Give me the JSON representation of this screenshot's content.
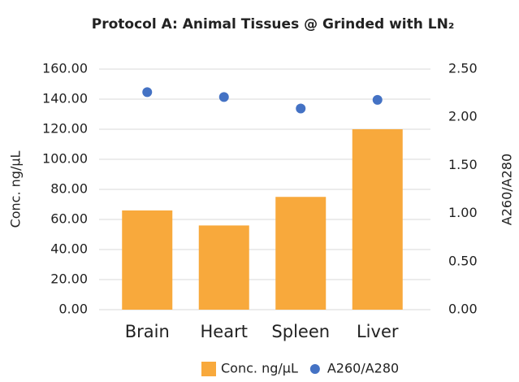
{
  "chart_data": {
    "type": "bar",
    "title": "Protocol A: Animal Tissues @ Grinded with LN₂",
    "y_label": "Conc. ng/µL",
    "y2_label": "A260/A280",
    "categories": [
      "Brain",
      "Heart",
      "Spleen",
      "Liver"
    ],
    "series": [
      {
        "name": "Conc. ng/µL",
        "type": "bar",
        "color": "#f8a93c",
        "values": [
          66,
          56,
          75,
          120
        ]
      },
      {
        "name": "A260/A280",
        "type": "scatter",
        "axis": "y2",
        "color": "#4472c4",
        "values": [
          2.26,
          2.21,
          2.09,
          2.18
        ]
      }
    ],
    "ylim": [
      0,
      160
    ],
    "yticks": [
      {
        "value": 0,
        "label": "0.00"
      },
      {
        "value": 20,
        "label": "20.00"
      },
      {
        "value": 40,
        "label": "40.00"
      },
      {
        "value": 60,
        "label": "60.00"
      },
      {
        "value": 80,
        "label": "80.00"
      },
      {
        "value": 100,
        "label": "100.00"
      },
      {
        "value": 120,
        "label": "120.00"
      },
      {
        "value": 140,
        "label": "140.00"
      },
      {
        "value": 160,
        "label": "160.00"
      }
    ],
    "y2lim": [
      0,
      2.5
    ],
    "y2ticks": [
      {
        "value": 0,
        "label": "0.00"
      },
      {
        "value": 0.5,
        "label": "0.50"
      },
      {
        "value": 1,
        "label": "1.00"
      },
      {
        "value": 1.5,
        "label": "1.50"
      },
      {
        "value": 2,
        "label": "2.00"
      },
      {
        "value": 2.5,
        "label": "2.50"
      }
    ],
    "grid": true,
    "legend": "bottom"
  }
}
